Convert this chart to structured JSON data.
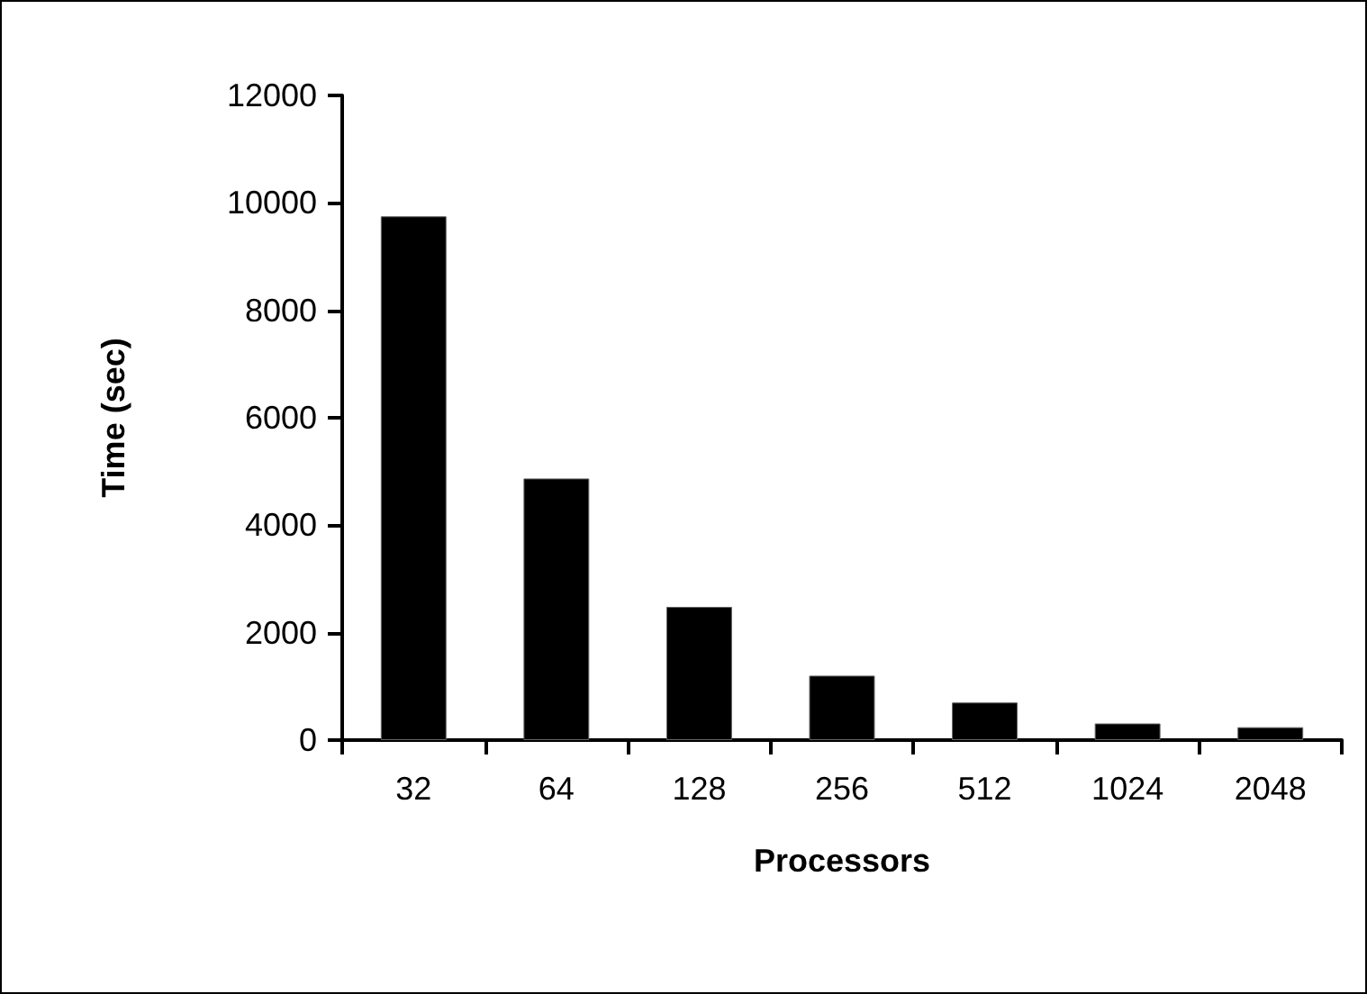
{
  "chart_data": {
    "type": "bar",
    "xlabel": "Processors",
    "ylabel": "Time (sec)",
    "categories": [
      "32",
      "64",
      "128",
      "256",
      "512",
      "1024",
      "2048"
    ],
    "values": [
      9750,
      4870,
      2480,
      1200,
      700,
      310,
      240
    ],
    "color": "#000000",
    "ylim": [
      0,
      12000
    ],
    "yticks": [
      0,
      2000,
      4000,
      6000,
      8000,
      10000,
      12000
    ],
    "grid": false
  }
}
